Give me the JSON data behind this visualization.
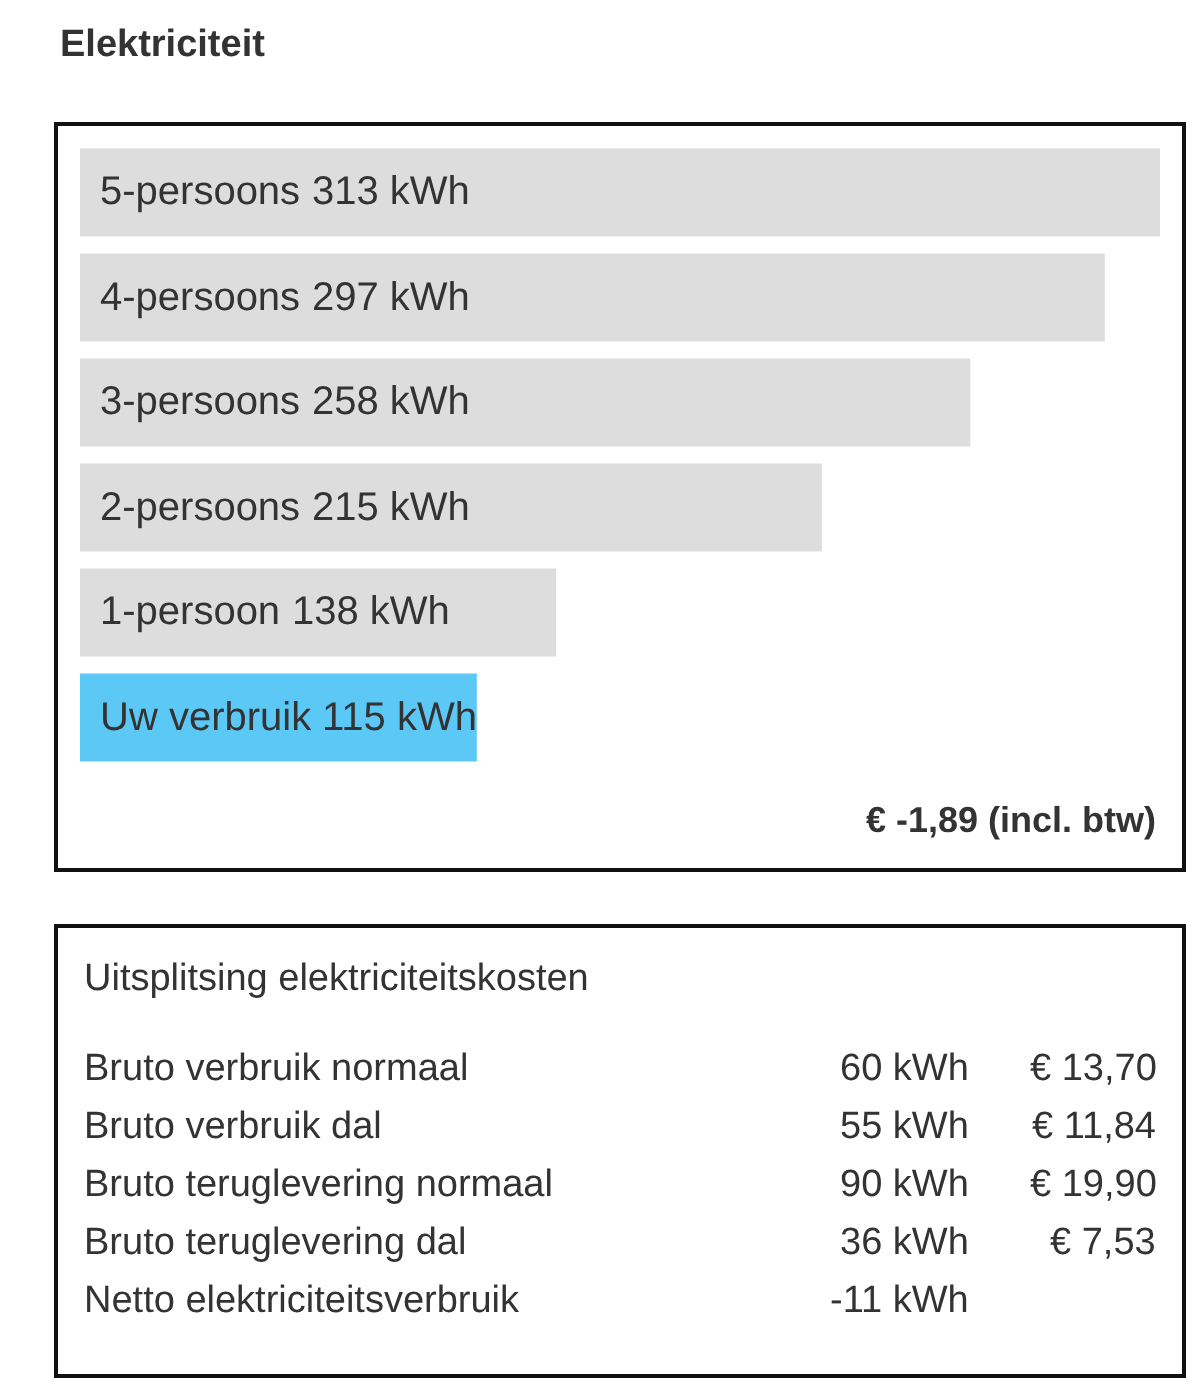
{
  "chart_data": [
    {
      "type": "bar",
      "orientation": "horizontal",
      "title": "Elektriciteit",
      "categories": [
        "5-persoons",
        "4-persoons",
        "3-persoons",
        "2-persoons",
        "1-persoon",
        "Uw verbruik"
      ],
      "values": [
        313,
        297,
        258,
        215,
        138,
        115
      ],
      "value_labels": [
        "313 kWh",
        "297 kWh",
        "258 kWh",
        "215 kWh",
        "138 kWh",
        "115 kWh"
      ],
      "colors": [
        "#dddddd",
        "#dddddd",
        "#dddddd",
        "#dddddd",
        "#dddddd",
        "#5bc8f5"
      ],
      "annotations": [
        "€ -1,89 (incl. btw)"
      ]
    },
    {
      "type": "other",
      "title": "Uitsplitsing elektriciteitskosten",
      "categories": [
        "Bruto verbruik normaal",
        "Bruto verbruik dal",
        "Bruto teruglevering normaal",
        "Bruto teruglevering dal",
        "Netto elektriciteitsverbruik"
      ],
      "annotations": [
        "60 kWh",
        "55 kWh",
        "90 kWh",
        "36 kWh",
        "-11 kWh",
        "€ 13,70",
        "€ 11,84",
        "€ 19,90",
        "€ 7,53"
      ]
    }
  ]
}
